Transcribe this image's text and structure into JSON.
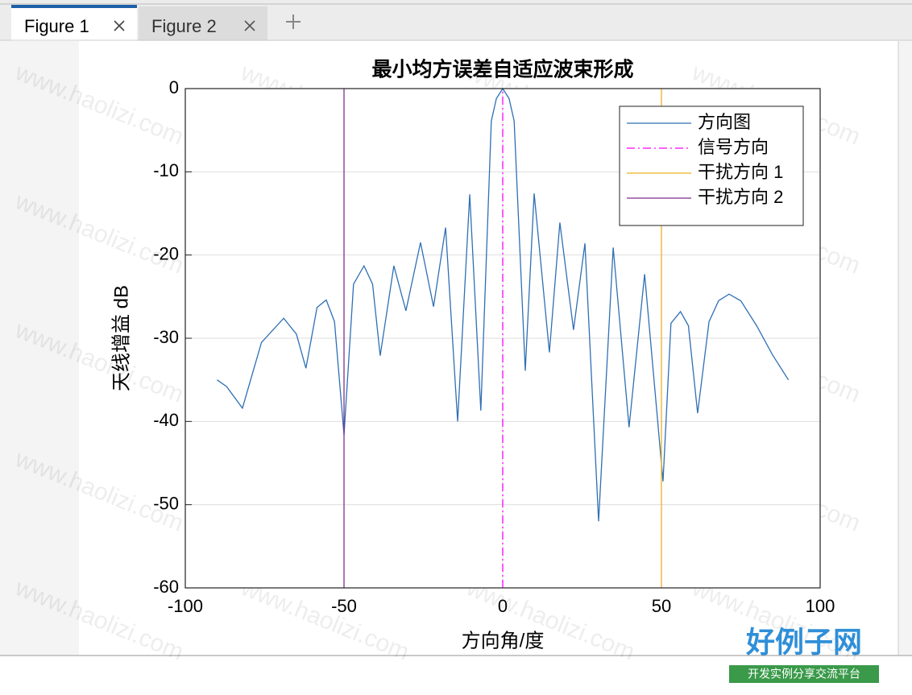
{
  "tabs": [
    "Figure 1",
    "Figure 2"
  ],
  "watermark": "www.haolizi.com",
  "logo": {
    "title": "好例子网",
    "subtitle": "开发实例分享交流平台"
  },
  "chart_data": {
    "type": "line",
    "title": "最小均方误差自适应波束形成",
    "xlabel": "方向角/度",
    "ylabel": "天线增益 dB",
    "xlim": [
      -100,
      100
    ],
    "xticks": [
      -100,
      -50,
      0,
      50,
      100
    ],
    "ylim": [
      -60,
      0
    ],
    "yticks": [
      -60,
      -50,
      -40,
      -30,
      -20,
      -10,
      0
    ],
    "grid": true,
    "legend_position": "upper right",
    "series": [
      {
        "name": "方向图",
        "color": "#2f6fb4",
        "style": "solid",
        "x": [
          -90,
          -87,
          -82,
          -76,
          -69,
          -65,
          -62,
          -58.5,
          -55.6,
          -53,
          -50,
          -47,
          -43.7,
          -41,
          -38.6,
          -34.3,
          -30.5,
          -25.9,
          -21.8,
          -18,
          -14.2,
          -10.4,
          -6.9,
          -3.6,
          -2,
          0,
          2,
          3.6,
          7.1,
          9.9,
          14.7,
          18,
          22.3,
          25.9,
          30.2,
          34.8,
          39.8,
          44.7,
          50.5,
          53,
          56,
          58.5,
          61.4,
          65,
          68,
          71.3,
          75,
          80,
          85,
          90
        ],
        "values": [
          -35,
          -35.8,
          -38.4,
          -30.5,
          -27.6,
          -29.5,
          -33.6,
          -26.3,
          -25.4,
          -28,
          -41.6,
          -23.5,
          -21.3,
          -23.5,
          -32.1,
          -21.3,
          -26.7,
          -18.5,
          -26.2,
          -16.7,
          -40,
          -12.7,
          -38.7,
          -3.9,
          -1.2,
          0,
          -1.2,
          -3.9,
          -33.9,
          -12.6,
          -31.7,
          -16.1,
          -29,
          -18.6,
          -52,
          -19.1,
          -40.7,
          -22.3,
          -47.2,
          -28.2,
          -26.8,
          -28.5,
          -39,
          -28,
          -25.5,
          -24.7,
          -25.5,
          -28.5,
          -32,
          -35
        ]
      },
      {
        "name": "信号方向",
        "color": "#ff00ff",
        "style": "dashdot",
        "x": [
          0,
          0
        ],
        "values": [
          -60,
          0
        ]
      },
      {
        "name": "干扰方向 1",
        "color": "#edb120",
        "style": "solid",
        "x": [
          50,
          50
        ],
        "values": [
          -60,
          0
        ]
      },
      {
        "name": "干扰方向 2",
        "color": "#7e2f8e",
        "style": "solid",
        "x": [
          -50,
          -50
        ],
        "values": [
          -60,
          0
        ]
      }
    ]
  }
}
